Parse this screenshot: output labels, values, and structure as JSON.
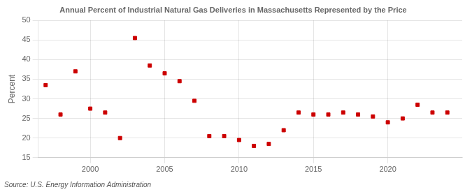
{
  "chart_data": {
    "type": "scatter",
    "title": "Annual Percent of Industrial Natural Gas Deliveries in Massachusetts Represented by the Price",
    "ylabel": "Percent",
    "source": "Source: U.S. Energy Information Administration",
    "x": [
      1997,
      1998,
      1999,
      2000,
      2001,
      2002,
      2003,
      2004,
      2005,
      2006,
      2007,
      2008,
      2009,
      2010,
      2011,
      2012,
      2013,
      2014,
      2015,
      2016,
      2017,
      2018,
      2019,
      2020,
      2021,
      2022,
      2023,
      2024
    ],
    "values": [
      33.5,
      26.0,
      37.0,
      27.5,
      26.5,
      20.0,
      45.5,
      38.5,
      36.5,
      34.5,
      29.5,
      20.5,
      20.5,
      19.5,
      18.0,
      18.5,
      22.0,
      26.5,
      26.0,
      26.0,
      26.5,
      26.0,
      25.5,
      24.0,
      25.0,
      28.5,
      26.5,
      26.5
    ],
    "color": "#cc0000",
    "marker": "square",
    "xlim": [
      1996.5,
      2025
    ],
    "ylim": [
      15,
      50
    ],
    "xticks": [
      2000,
      2005,
      2010,
      2015,
      2020
    ],
    "yticks": [
      15,
      20,
      25,
      30,
      35,
      40,
      45,
      50
    ],
    "grid": true,
    "legend": false
  }
}
